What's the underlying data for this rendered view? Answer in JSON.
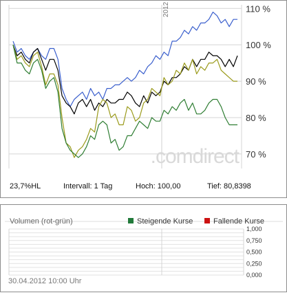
{
  "chart_data": [
    {
      "type": "line",
      "y_ticks": [
        "110 %",
        "100 %",
        "90 %",
        "80 %",
        "70 %"
      ],
      "y_tick_values": [
        110,
        100,
        90,
        80,
        70
      ],
      "ylim": [
        66,
        111
      ],
      "year_marker": "2012",
      "watermark": ".comdirect",
      "grid": true,
      "series": [
        {
          "color": "#3a5fcd",
          "values": [
            101,
            98,
            99,
            97,
            96,
            98,
            99,
            97,
            96,
            99,
            99,
            96,
            88,
            85,
            83,
            85,
            86,
            87,
            85,
            88,
            86,
            87,
            85,
            88,
            88,
            89,
            89,
            90,
            91,
            90,
            91,
            93,
            92,
            94,
            95,
            97,
            96,
            98,
            97,
            101,
            101,
            102,
            104,
            103,
            105,
            104,
            106,
            106,
            107,
            109,
            108,
            106,
            107,
            105,
            107,
            107
          ]
        },
        {
          "color": "#000000",
          "values": [
            100,
            97,
            98,
            96,
            95,
            98,
            99,
            96,
            93,
            96,
            96,
            93,
            86,
            84,
            83,
            81,
            84,
            85,
            83,
            85,
            82,
            84,
            83,
            85,
            84,
            84,
            85,
            85,
            87,
            86,
            84,
            83,
            86,
            84,
            87,
            86,
            87,
            90,
            89,
            91,
            91,
            92,
            94,
            93,
            96,
            94,
            96,
            96,
            98,
            97,
            97,
            96,
            94,
            96,
            94,
            97
          ]
        },
        {
          "color": "#9a9a1a",
          "values": [
            100,
            96,
            97,
            95,
            94,
            97,
            98,
            94,
            89,
            92,
            92,
            89,
            80,
            73,
            72,
            69,
            71,
            72,
            74,
            77,
            76,
            83,
            85,
            84,
            80,
            81,
            78,
            78,
            83,
            82,
            79,
            80,
            84,
            85,
            88,
            87,
            86,
            91,
            89,
            90,
            93,
            92,
            95,
            93,
            96,
            92,
            94,
            93,
            95,
            95,
            96,
            93,
            92,
            91,
            90,
            90
          ]
        },
        {
          "color": "#2e7d32",
          "values": [
            100,
            95,
            95,
            93,
            92,
            95,
            96,
            93,
            88,
            90,
            91,
            87,
            77,
            73,
            71,
            70,
            69,
            70,
            72,
            75,
            74,
            78,
            79,
            78,
            73,
            74,
            71,
            72,
            75,
            75,
            77,
            79,
            78,
            77,
            80,
            79,
            79,
            82,
            81,
            83,
            82,
            84,
            85,
            82,
            84,
            81,
            81,
            82,
            84,
            85,
            85,
            83,
            80,
            78,
            78,
            78
          ]
        }
      ]
    },
    {
      "type": "bar",
      "title": "Volumen (rot-grün)",
      "legend": [
        {
          "name": "Steigende Kurse",
          "color": "#217a3a"
        },
        {
          "name": "Fallende Kurse",
          "color": "#cc1111"
        }
      ],
      "y_ticks": [
        "1,000",
        "0,750",
        "0,500",
        "0,250",
        "0,000"
      ],
      "y_tick_values": [
        1,
        0.75,
        0.5,
        0.25,
        0
      ],
      "ylim": [
        0,
        1
      ],
      "values": []
    }
  ],
  "info": {
    "hl": "23,7%HL",
    "interval": "Intervall: 1 Tag",
    "high": "Hoch:  100,00",
    "low": "Tief: 80,8398"
  },
  "timestamp": "30.04.2012 10:00 Uhr"
}
